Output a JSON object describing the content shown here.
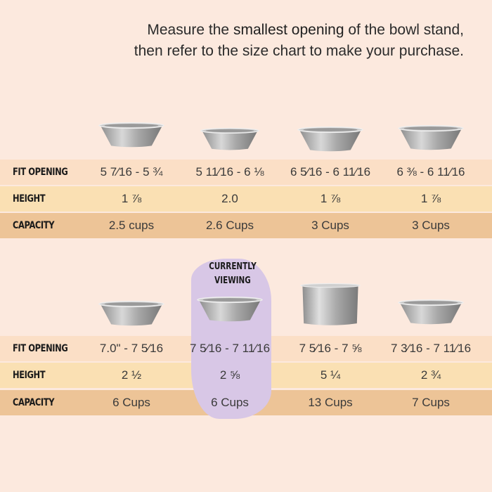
{
  "headline": {
    "line1_pre": "Measure the ",
    "line1_highlight": "smallest opening",
    "line1_post": " of the bowl stand,",
    "line2": "then refer to the size chart to make your purchase."
  },
  "row_labels": {
    "fit_opening": "FIT OPENING",
    "height": "HEIGHT",
    "capacity": "CAPACITY"
  },
  "current_label": "CURRENTLY VIEWING",
  "colors": {
    "background": "#fce9de",
    "fit_band": "#fbdfc6",
    "height_band": "#fae0b3",
    "capacity_band": "#edc497",
    "highlight": "#d8c7e6"
  },
  "table1": [
    {
      "fit": "5 7⁄16 - 5 ¾",
      "height": "1 ⅞",
      "capacity": "2.5 cups",
      "bowl": "bowl-icon"
    },
    {
      "fit": "5 11⁄16 - 6 ⅛",
      "height": "2.0",
      "capacity": "2.6 Cups",
      "bowl": "bowl-icon"
    },
    {
      "fit": "6 5⁄16 - 6 11⁄16",
      "height": "1 ⅞",
      "capacity": "3 Cups",
      "bowl": "bowl-icon"
    },
    {
      "fit": "6 ⅜ - 6 11⁄16",
      "height": "1 ⅞",
      "capacity": "3 Cups",
      "bowl": "bowl-icon"
    }
  ],
  "table2": [
    {
      "fit": "7.0\" - 7 5⁄16",
      "height": "2 ½",
      "capacity": "6 Cups",
      "bowl": "bowl-icon"
    },
    {
      "fit": "7 5⁄16 - 7 11⁄16",
      "height": "2 ⅝",
      "capacity": "6 Cups",
      "bowl": "bowl-icon",
      "current": true
    },
    {
      "fit": "7 5⁄16 - 7 ⅝",
      "height": "5 ¼",
      "capacity": "13 Cups",
      "bowl": "deep-bowl-icon"
    },
    {
      "fit": "7 3⁄16 - 7 11⁄16",
      "height": "2 ¾",
      "capacity": "7 Cups",
      "bowl": "bowl-icon"
    }
  ]
}
